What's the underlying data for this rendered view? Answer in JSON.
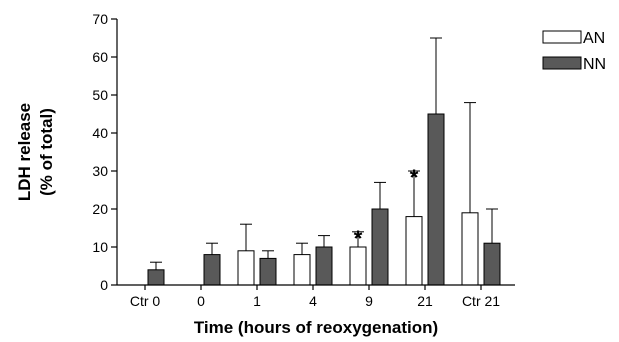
{
  "chart_data": {
    "type": "bar",
    "categories": [
      "Ctr 0",
      "0",
      "1",
      "4",
      "9",
      "21",
      "Ctr 21"
    ],
    "series": [
      {
        "name": "AN",
        "values": [
          0,
          0,
          9,
          8,
          10,
          18,
          19
        ],
        "errors": [
          0,
          0,
          7,
          3,
          4,
          12,
          29
        ],
        "color": "#ffffff"
      },
      {
        "name": "NN",
        "values": [
          4,
          8,
          7,
          10,
          20,
          45,
          11
        ],
        "errors": [
          2,
          3,
          2,
          3,
          7,
          20,
          9
        ],
        "color": "#595959"
      }
    ],
    "significance": [
      {
        "category": "9",
        "series": "AN",
        "label": "*"
      },
      {
        "category": "21",
        "series": "AN",
        "label": "*"
      }
    ],
    "xlabel": "Time (hours of reoxygenation)",
    "ylabel_line1": "LDH release",
    "ylabel_line2": "(% of total)",
    "ylim": [
      0,
      70
    ],
    "yticks": [
      0,
      10,
      20,
      30,
      40,
      50,
      60,
      70
    ],
    "legend_position": "top-right",
    "grid": false
  }
}
